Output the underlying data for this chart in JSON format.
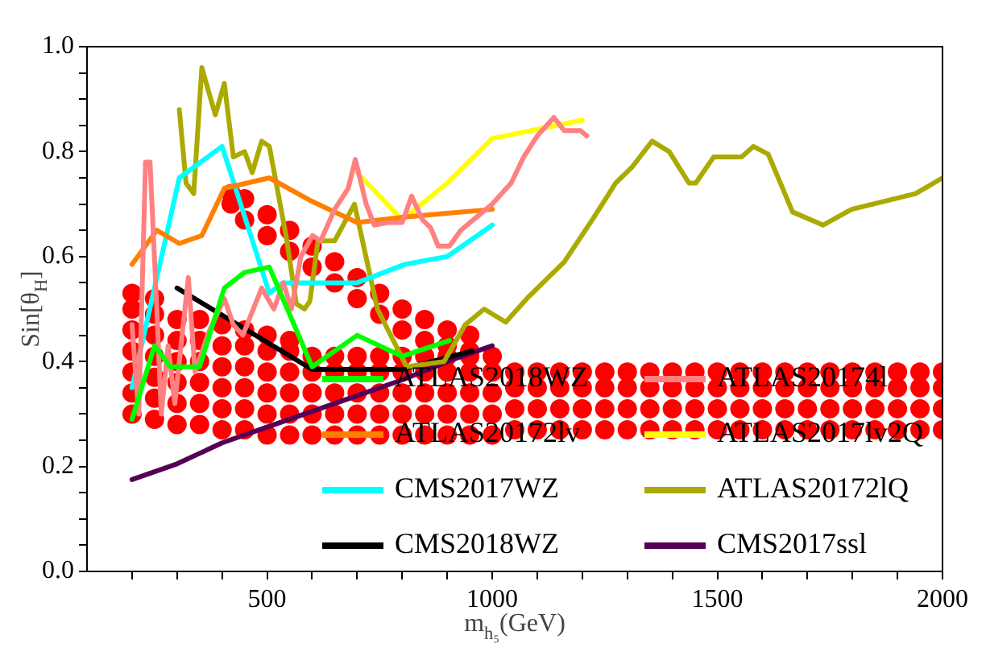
{
  "chart_data": {
    "type": "line",
    "xlabel": "m$_{h₅}$(GeV)",
    "ylabel": "Sin[θ$_{H}$]",
    "xlim": [
      100,
      2000
    ],
    "ylim": [
      0,
      1
    ],
    "xticks": [
      {
        "value": 200,
        "label": null
      },
      {
        "value": 300,
        "label": null
      },
      {
        "value": 400,
        "label": null
      },
      500,
      {
        "value": 600,
        "label": null
      },
      {
        "value": 700,
        "label": null
      },
      {
        "value": 800,
        "label": null
      },
      {
        "value": 900,
        "label": null
      },
      1000,
      {
        "value": 1100,
        "label": null
      },
      {
        "value": 1200,
        "label": null
      },
      {
        "value": 1300,
        "label": null
      },
      {
        "value": 1400,
        "label": null
      },
      1500,
      {
        "value": 1600,
        "label": null
      },
      {
        "value": 1700,
        "label": null
      },
      {
        "value": 1800,
        "label": null
      },
      {
        "value": 1900,
        "label": null
      },
      2000
    ],
    "yticks": [
      {
        "value": 0,
        "label": "0.0"
      },
      {
        "value": 0.05,
        "label": null
      },
      {
        "value": 0.1,
        "label": null
      },
      {
        "value": 0.15,
        "label": null
      },
      {
        "value": 0.2,
        "label": "0.2"
      },
      {
        "value": 0.25,
        "label": null
      },
      {
        "value": 0.3,
        "label": null
      },
      {
        "value": 0.35,
        "label": null
      },
      {
        "value": 0.4,
        "label": "0.4"
      },
      {
        "value": 0.45,
        "label": null
      },
      {
        "value": 0.5,
        "label": null
      },
      {
        "value": 0.55,
        "label": null
      },
      {
        "value": 0.6,
        "label": "0.6"
      },
      {
        "value": 0.65,
        "label": null
      },
      {
        "value": 0.7,
        "label": null
      },
      {
        "value": 0.75,
        "label": null
      },
      {
        "value": 0.8,
        "label": "0.8"
      },
      {
        "value": 0.85,
        "label": null
      },
      {
        "value": 0.9,
        "label": null
      },
      {
        "value": 0.95,
        "label": null
      },
      {
        "value": 1,
        "label": "1.0"
      }
    ],
    "grid": false,
    "legend": "bottom right",
    "line_style": "solid",
    "series": [
      {
        "type": "scatter",
        "marker": "circle",
        "color": "#ff0000",
        "x": [
          200,
          200,
          200,
          200,
          200,
          200,
          200,
          250,
          250,
          250,
          250,
          250,
          250,
          250,
          300,
          300,
          300,
          300,
          300,
          300,
          350,
          350,
          350,
          350,
          350,
          350,
          400,
          400,
          400,
          400,
          400,
          400,
          450,
          450,
          450,
          450,
          450,
          450,
          500,
          500,
          500,
          500,
          500,
          500,
          550,
          550,
          550,
          550,
          550,
          550,
          600,
          600,
          600,
          600,
          600,
          650,
          650,
          650,
          650,
          650,
          700,
          700,
          700,
          700,
          700,
          750,
          750,
          750,
          750,
          750,
          800,
          800,
          800,
          800,
          800,
          850,
          850,
          850,
          850,
          850,
          900,
          900,
          900,
          900,
          900,
          950,
          950,
          950,
          950,
          950,
          1000,
          1000,
          1000,
          1000,
          1000,
          1050,
          1050,
          1050,
          1050,
          1100,
          1100,
          1100,
          1100,
          1150,
          1150,
          1150,
          1150,
          1200,
          1200,
          1200,
          1200,
          1250,
          1250,
          1250,
          1250,
          1300,
          1300,
          1300,
          1300,
          1350,
          1350,
          1350,
          1350,
          1400,
          1400,
          1400,
          1400,
          1450,
          1450,
          1450,
          1450,
          1500,
          1500,
          1500,
          1500,
          1550,
          1550,
          1550,
          1550,
          1600,
          1600,
          1600,
          1600,
          1650,
          1650,
          1650,
          1650,
          1700,
          1700,
          1700,
          1700,
          1750,
          1750,
          1750,
          1750,
          1800,
          1800,
          1800,
          1800,
          1850,
          1850,
          1850,
          1850,
          1900,
          1900,
          1900,
          1900,
          1950,
          1950,
          1950,
          1950,
          2000,
          2000,
          2000,
          2000,
          420,
          420,
          450,
          450,
          500,
          500,
          550,
          550,
          600,
          600,
          650,
          650,
          700,
          700,
          750,
          750,
          800,
          800,
          850,
          850,
          900,
          900,
          950,
          950
        ],
        "values": [
          0.3,
          0.34,
          0.38,
          0.42,
          0.46,
          0.5,
          0.53,
          0.29,
          0.33,
          0.37,
          0.41,
          0.45,
          0.49,
          0.52,
          0.28,
          0.32,
          0.36,
          0.4,
          0.44,
          0.48,
          0.28,
          0.32,
          0.36,
          0.4,
          0.44,
          0.48,
          0.27,
          0.31,
          0.35,
          0.39,
          0.43,
          0.47,
          0.27,
          0.31,
          0.35,
          0.39,
          0.43,
          0.46,
          0.26,
          0.3,
          0.34,
          0.38,
          0.42,
          0.45,
          0.26,
          0.3,
          0.34,
          0.38,
          0.42,
          0.44,
          0.26,
          0.3,
          0.34,
          0.38,
          0.41,
          0.26,
          0.3,
          0.34,
          0.38,
          0.41,
          0.26,
          0.3,
          0.34,
          0.38,
          0.41,
          0.26,
          0.3,
          0.34,
          0.38,
          0.41,
          0.26,
          0.3,
          0.34,
          0.38,
          0.41,
          0.26,
          0.3,
          0.34,
          0.38,
          0.41,
          0.26,
          0.3,
          0.34,
          0.38,
          0.41,
          0.26,
          0.3,
          0.34,
          0.38,
          0.41,
          0.26,
          0.3,
          0.34,
          0.38,
          0.41,
          0.27,
          0.31,
          0.35,
          0.38,
          0.27,
          0.31,
          0.35,
          0.38,
          0.27,
          0.31,
          0.35,
          0.38,
          0.27,
          0.31,
          0.35,
          0.38,
          0.27,
          0.31,
          0.35,
          0.38,
          0.27,
          0.31,
          0.35,
          0.38,
          0.27,
          0.31,
          0.35,
          0.38,
          0.27,
          0.31,
          0.35,
          0.38,
          0.27,
          0.31,
          0.35,
          0.38,
          0.27,
          0.31,
          0.35,
          0.38,
          0.27,
          0.31,
          0.35,
          0.38,
          0.27,
          0.31,
          0.35,
          0.38,
          0.27,
          0.31,
          0.35,
          0.38,
          0.27,
          0.31,
          0.35,
          0.38,
          0.27,
          0.31,
          0.35,
          0.38,
          0.27,
          0.31,
          0.35,
          0.38,
          0.27,
          0.31,
          0.35,
          0.38,
          0.27,
          0.31,
          0.35,
          0.38,
          0.27,
          0.31,
          0.35,
          0.38,
          0.27,
          0.31,
          0.35,
          0.38,
          0.7,
          0.72,
          0.67,
          0.71,
          0.64,
          0.68,
          0.61,
          0.65,
          0.58,
          0.62,
          0.55,
          0.59,
          0.52,
          0.56,
          0.49,
          0.53,
          0.46,
          0.5,
          0.44,
          0.48,
          0.43,
          0.46,
          0.42,
          0.45
        ]
      },
      {
        "name": "ATLAS2018WZ",
        "color": "#00ff00",
        "x": [
          200,
          250,
          285,
          350,
          405,
          450,
          505,
          600,
          700,
          800,
          905
        ],
        "values": [
          0.29,
          0.43,
          0.39,
          0.39,
          0.54,
          0.57,
          0.58,
          0.39,
          0.45,
          0.41,
          0.44
        ]
      },
      {
        "name": "ATLAS20174l",
        "color": "#ff8080",
        "x": [
          200,
          215,
          230,
          240,
          255,
          265,
          280,
          295,
          325,
          340,
          370,
          405,
          425,
          446,
          488,
          515,
          536,
          554,
          575,
          601,
          619,
          650,
          680,
          696,
          720,
          738,
          770,
          800,
          821,
          845,
          863,
          880,
          905,
          930,
          958,
          1000,
          1042,
          1070,
          1100,
          1137,
          1160,
          1196,
          1210
        ],
        "values": [
          0.47,
          0.3,
          0.78,
          0.78,
          0.5,
          0.3,
          0.43,
          0.32,
          0.56,
          0.38,
          0.455,
          0.52,
          0.47,
          0.45,
          0.54,
          0.5,
          0.55,
          0.5,
          0.6,
          0.64,
          0.63,
          0.69,
          0.73,
          0.785,
          0.7,
          0.66,
          0.665,
          0.665,
          0.715,
          0.67,
          0.655,
          0.62,
          0.62,
          0.65,
          0.67,
          0.7,
          0.74,
          0.79,
          0.83,
          0.865,
          0.84,
          0.84,
          0.83
        ]
      },
      {
        "name": "ATLAS20172lv",
        "color": "#ff8000",
        "x": [
          200,
          255,
          305,
          355,
          405,
          505,
          600,
          700,
          800,
          1000
        ],
        "values": [
          0.585,
          0.65,
          0.625,
          0.64,
          0.73,
          0.75,
          0.705,
          0.665,
          0.675,
          0.69
        ]
      },
      {
        "name": "ATLAS2017lv2Q",
        "color": "#ffff00",
        "x": [
          700,
          800,
          900,
          1000,
          1200
        ],
        "values": [
          0.76,
          0.67,
          0.74,
          0.825,
          0.86
        ]
      },
      {
        "name": "CMS2017WZ",
        "color": "#00ffff",
        "x": [
          200,
          305,
          400,
          505,
          535,
          700,
          805,
          900,
          1000
        ],
        "values": [
          0.35,
          0.75,
          0.81,
          0.53,
          0.55,
          0.55,
          0.585,
          0.6,
          0.66
        ]
      },
      {
        "name": "ATLAS20172lQ",
        "color": "#aaaa00",
        "x": [
          305,
          320,
          337,
          355,
          385,
          405,
          425,
          450,
          467,
          488,
          505,
          542,
          565,
          583,
          595,
          613,
          650,
          694,
          745,
          798,
          810,
          893,
          940,
          982,
          1030,
          1077,
          1160,
          1226,
          1274,
          1310,
          1355,
          1393,
          1437,
          1452,
          1492,
          1554,
          1580,
          1613,
          1667,
          1735,
          1798,
          1940,
          2000
        ],
        "values": [
          0.88,
          0.74,
          0.72,
          0.96,
          0.87,
          0.93,
          0.79,
          0.8,
          0.76,
          0.82,
          0.81,
          0.64,
          0.51,
          0.5,
          0.515,
          0.63,
          0.63,
          0.7,
          0.5,
          0.41,
          0.39,
          0.4,
          0.47,
          0.5,
          0.475,
          0.52,
          0.59,
          0.675,
          0.74,
          0.77,
          0.82,
          0.8,
          0.74,
          0.74,
          0.79,
          0.79,
          0.81,
          0.795,
          0.685,
          0.66,
          0.69,
          0.72,
          0.75
        ]
      },
      {
        "name": "CMS2018WZ",
        "color": "#000000",
        "x": [
          300,
          600,
          800,
          955
        ],
        "values": [
          0.54,
          0.385,
          0.385,
          0.42
        ]
      },
      {
        "name": "CMS2017ssl",
        "color": "#550055",
        "x": [
          200,
          300,
          400,
          500,
          600,
          700,
          800,
          900,
          1000
        ],
        "values": [
          0.175,
          0.205,
          0.245,
          0.275,
          0.305,
          0.335,
          0.365,
          0.4,
          0.43
        ]
      }
    ]
  }
}
